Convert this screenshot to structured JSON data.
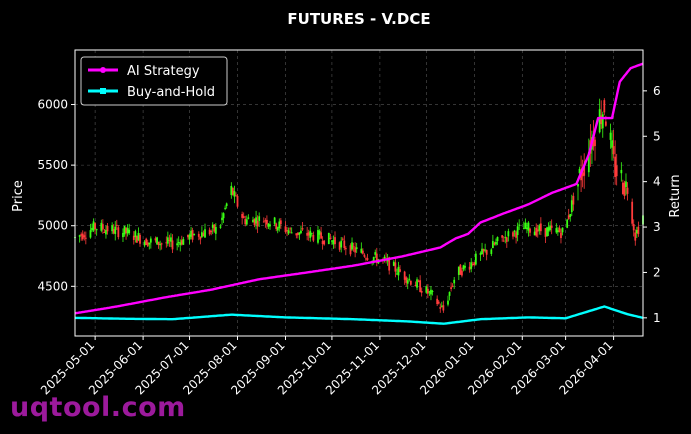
{
  "watermark": "uqtool.com",
  "chart_data": {
    "type": "line",
    "title": "FUTURES - V.DCE",
    "ylabel_left": "Price",
    "ylabel_right": "Return",
    "date_range": [
      "2025-04-18",
      "2026-04-20"
    ],
    "ylim_left": [
      4090,
      6450
    ],
    "ylim_right": [
      0.6,
      6.9
    ],
    "grid": true,
    "legend_position": "top-left",
    "x_ticks": [
      "2025-05-01",
      "2025-06-01",
      "2025-07-01",
      "2025-08-01",
      "2025-09-01",
      "2025-10-01",
      "2025-11-01",
      "2025-12-01",
      "2026-01-01",
      "2026-02-01",
      "2026-03-01",
      "2026-04-01"
    ],
    "y_ticks_left": [
      4500,
      5000,
      5500,
      6000
    ],
    "y_ticks_right": [
      1,
      2,
      3,
      4,
      5,
      6
    ],
    "candle_colors": {
      "up": "#39ff14",
      "down": "#ff3b3b"
    },
    "price_anchors": [
      {
        "date": "2025-04-18",
        "price": 4900
      },
      {
        "date": "2025-05-01",
        "price": 4990
      },
      {
        "date": "2025-05-20",
        "price": 4950
      },
      {
        "date": "2025-06-05",
        "price": 4870
      },
      {
        "date": "2025-06-20",
        "price": 4850
      },
      {
        "date": "2025-07-05",
        "price": 4930
      },
      {
        "date": "2025-07-20",
        "price": 4970
      },
      {
        "date": "2025-07-28",
        "price": 5300
      },
      {
        "date": "2025-08-05",
        "price": 5050
      },
      {
        "date": "2025-08-20",
        "price": 5050
      },
      {
        "date": "2025-09-05",
        "price": 4950
      },
      {
        "date": "2025-09-20",
        "price": 4920
      },
      {
        "date": "2025-10-01",
        "price": 4880
      },
      {
        "date": "2025-10-20",
        "price": 4780
      },
      {
        "date": "2025-11-05",
        "price": 4700
      },
      {
        "date": "2025-11-20",
        "price": 4560
      },
      {
        "date": "2025-12-05",
        "price": 4420
      },
      {
        "date": "2025-12-12",
        "price": 4300
      },
      {
        "date": "2025-12-20",
        "price": 4600
      },
      {
        "date": "2026-01-05",
        "price": 4750
      },
      {
        "date": "2026-01-20",
        "price": 4900
      },
      {
        "date": "2026-02-01",
        "price": 4980
      },
      {
        "date": "2026-02-15",
        "price": 4960
      },
      {
        "date": "2026-02-28",
        "price": 4950
      },
      {
        "date": "2026-03-10",
        "price": 5400
      },
      {
        "date": "2026-03-20",
        "price": 5800
      },
      {
        "date": "2026-03-26",
        "price": 6000
      },
      {
        "date": "2026-04-01",
        "price": 5500
      },
      {
        "date": "2026-04-10",
        "price": 5300
      },
      {
        "date": "2026-04-15",
        "price": 4920
      },
      {
        "date": "2026-04-20",
        "price": 5080
      }
    ],
    "series": [
      {
        "name": "AI Strategy",
        "color": "#ff00ff",
        "marker": "circle",
        "points": [
          {
            "date": "2025-04-18",
            "return": 1.1
          },
          {
            "date": "2025-05-15",
            "return": 1.25
          },
          {
            "date": "2025-06-15",
            "return": 1.45
          },
          {
            "date": "2025-07-15",
            "return": 1.62
          },
          {
            "date": "2025-08-15",
            "return": 1.85
          },
          {
            "date": "2025-09-15",
            "return": 2.0
          },
          {
            "date": "2025-10-15",
            "return": 2.15
          },
          {
            "date": "2025-11-15",
            "return": 2.35
          },
          {
            "date": "2025-12-10",
            "return": 2.55
          },
          {
            "date": "2025-12-20",
            "return": 2.75
          },
          {
            "date": "2025-12-28",
            "return": 2.85
          },
          {
            "date": "2026-01-05",
            "return": 3.1
          },
          {
            "date": "2026-01-20",
            "return": 3.3
          },
          {
            "date": "2026-02-05",
            "return": 3.5
          },
          {
            "date": "2026-02-20",
            "return": 3.75
          },
          {
            "date": "2026-03-08",
            "return": 3.95
          },
          {
            "date": "2026-03-16",
            "return": 4.6
          },
          {
            "date": "2026-03-22",
            "return": 5.4
          },
          {
            "date": "2026-03-31",
            "return": 5.4
          },
          {
            "date": "2026-04-05",
            "return": 6.2
          },
          {
            "date": "2026-04-12",
            "return": 6.5
          },
          {
            "date": "2026-04-20",
            "return": 6.6
          }
        ]
      },
      {
        "name": "Buy-and-Hold",
        "color": "#00ffff",
        "marker": "square",
        "points": [
          {
            "date": "2025-04-18",
            "return": 1.0
          },
          {
            "date": "2025-05-20",
            "return": 0.98
          },
          {
            "date": "2025-06-20",
            "return": 0.97
          },
          {
            "date": "2025-07-28",
            "return": 1.07
          },
          {
            "date": "2025-09-01",
            "return": 1.01
          },
          {
            "date": "2025-10-15",
            "return": 0.97
          },
          {
            "date": "2025-11-20",
            "return": 0.92
          },
          {
            "date": "2025-12-12",
            "return": 0.87
          },
          {
            "date": "2026-01-05",
            "return": 0.97
          },
          {
            "date": "2026-02-05",
            "return": 1.01
          },
          {
            "date": "2026-03-01",
            "return": 0.99
          },
          {
            "date": "2026-03-26",
            "return": 1.25
          },
          {
            "date": "2026-04-10",
            "return": 1.08
          },
          {
            "date": "2026-04-20",
            "return": 1.0
          }
        ]
      }
    ]
  }
}
